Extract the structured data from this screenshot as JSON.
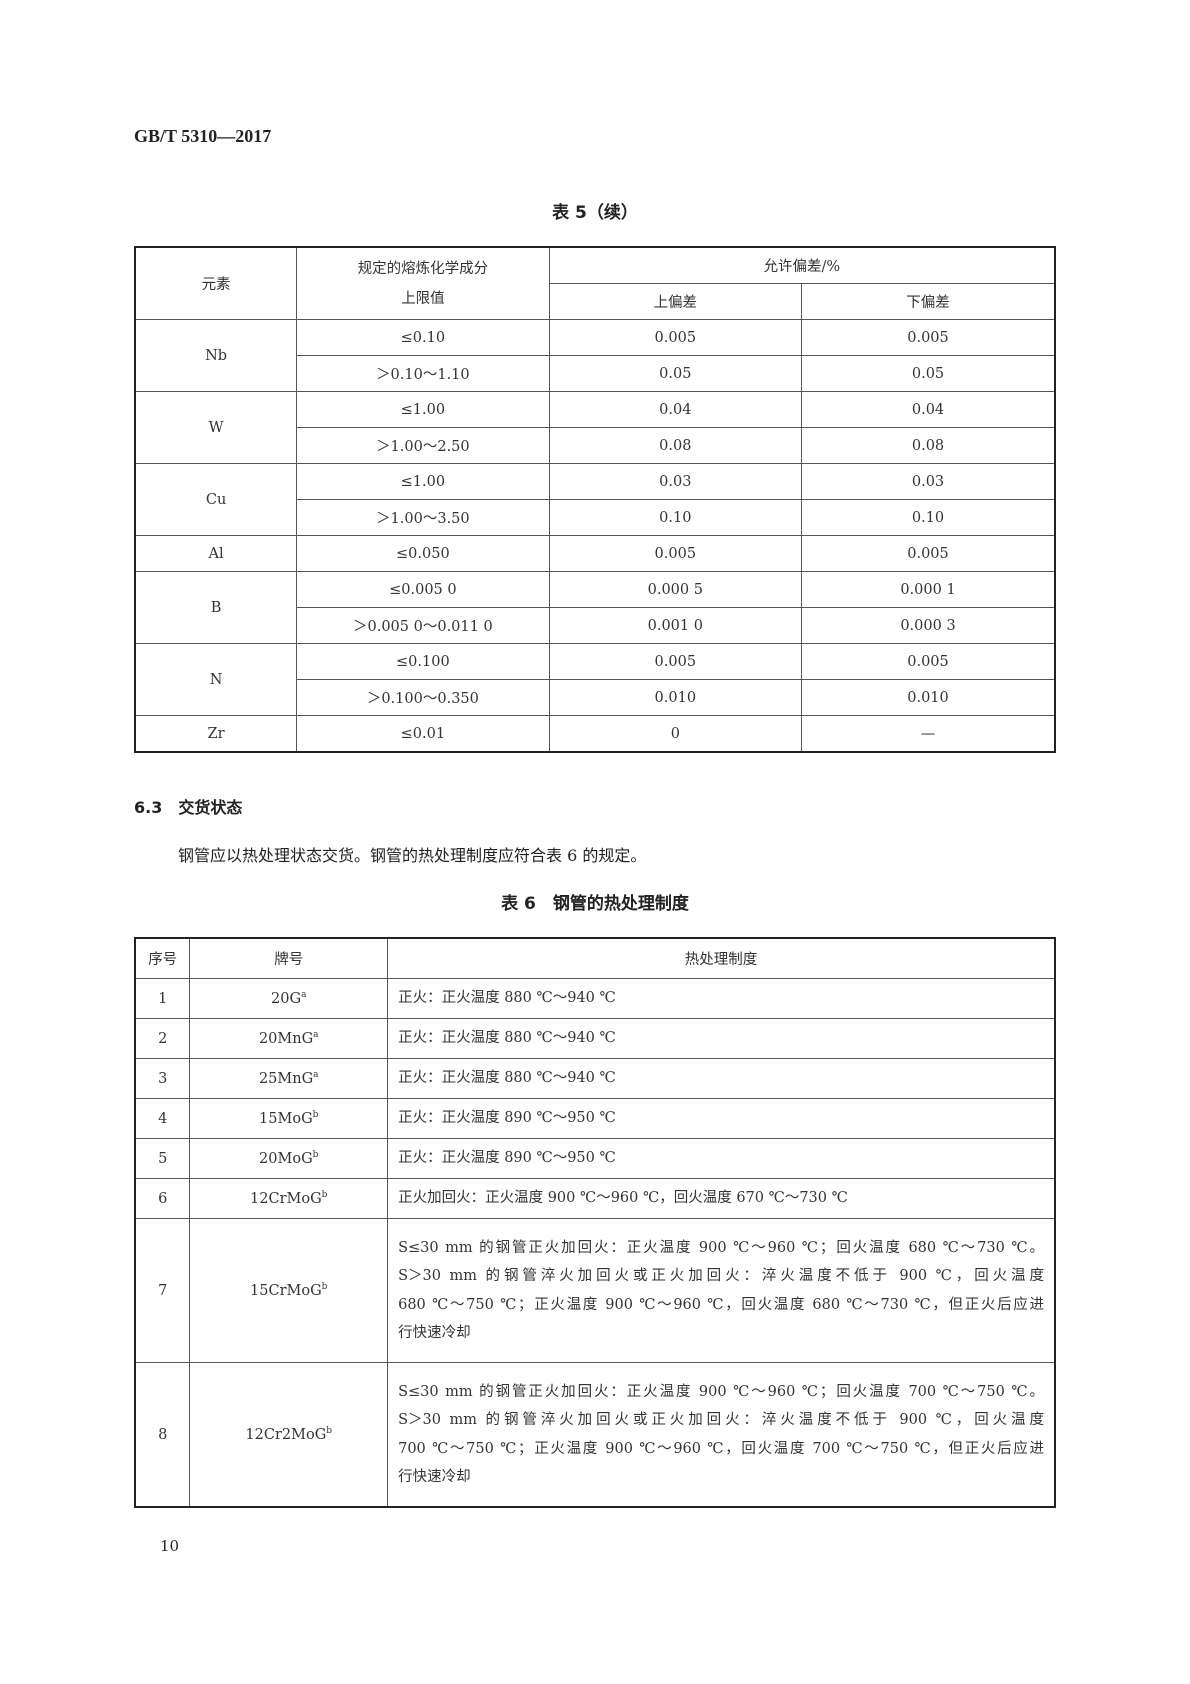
{
  "header": "GB/T 5310—2017",
  "table5": {
    "title": "表 5（续）",
    "headers": {
      "element": "元素",
      "limit_line1": "规定的熔炼化学成分",
      "limit_line2": "上限值",
      "tolerance": "允许偏差/%",
      "upper": "上偏差",
      "lower": "下偏差"
    },
    "groups": [
      {
        "element": "Nb",
        "rows": [
          [
            "≤0.10",
            "0.005",
            "0.005"
          ],
          [
            "＞0.10～1.10",
            "0.05",
            "0.05"
          ]
        ]
      },
      {
        "element": "W",
        "rows": [
          [
            "≤1.00",
            "0.04",
            "0.04"
          ],
          [
            "＞1.00～2.50",
            "0.08",
            "0.08"
          ]
        ]
      },
      {
        "element": "Cu",
        "rows": [
          [
            "≤1.00",
            "0.03",
            "0.03"
          ],
          [
            "＞1.00～3.50",
            "0.10",
            "0.10"
          ]
        ]
      },
      {
        "element": "Al",
        "rows": [
          [
            "≤0.050",
            "0.005",
            "0.005"
          ]
        ]
      },
      {
        "element": "B",
        "rows": [
          [
            "≤0.005 0",
            "0.000 5",
            "0.000 1"
          ],
          [
            "＞0.005 0～0.011 0",
            "0.001 0",
            "0.000 3"
          ]
        ]
      },
      {
        "element": "N",
        "rows": [
          [
            "≤0.100",
            "0.005",
            "0.005"
          ],
          [
            "＞0.100～0.350",
            "0.010",
            "0.010"
          ]
        ]
      },
      {
        "element": "Zr",
        "rows": [
          [
            "≤0.01",
            "0",
            "—"
          ]
        ]
      }
    ]
  },
  "section": {
    "number": "6.3",
    "title": "交货状态",
    "paragraph": "钢管应以热处理状态交货。钢管的热处理制度应符合表 6 的规定。"
  },
  "table6": {
    "title": "表 6　钢管的热处理制度",
    "headers": [
      "序号",
      "牌号",
      "热处理制度"
    ],
    "rows": [
      {
        "no": "1",
        "grade": "20G",
        "sup": "a",
        "lines": [
          "正火：正火温度 880 ℃～940 ℃"
        ]
      },
      {
        "no": "2",
        "grade": "20MnG",
        "sup": "a",
        "lines": [
          "正火：正火温度 880 ℃～940 ℃"
        ]
      },
      {
        "no": "3",
        "grade": "25MnG",
        "sup": "a",
        "lines": [
          "正火：正火温度 880 ℃～940 ℃"
        ]
      },
      {
        "no": "4",
        "grade": "15MoG",
        "sup": "b",
        "lines": [
          "正火：正火温度 890 ℃～950 ℃"
        ]
      },
      {
        "no": "5",
        "grade": "20MoG",
        "sup": "b",
        "lines": [
          "正火：正火温度 890 ℃～950 ℃"
        ]
      },
      {
        "no": "6",
        "grade": "12CrMoG",
        "sup": "b",
        "lines": [
          "正火加回火：正火温度 900 ℃～960 ℃，回火温度 670 ℃～730 ℃"
        ]
      },
      {
        "no": "7",
        "grade": "15CrMoG",
        "sup": "b",
        "lines": [
          "S≤30 mm 的钢管正火加回火：正火温度 900 ℃～960 ℃；回火温度 680 ℃～730 ℃。",
          "S＞30 mm 的钢管淬火加回火或正火加回火：淬火温度不低于 900 ℃，回火温度",
          "680 ℃～750 ℃；正火温度 900 ℃～960 ℃，回火温度 680 ℃～730 ℃，但正火后应进",
          "行快速冷却"
        ]
      },
      {
        "no": "8",
        "grade": "12Cr2MoG",
        "sup": "b",
        "lines": [
          "S≤30 mm 的钢管正火加回火：正火温度 900 ℃～960 ℃；回火温度 700 ℃～750 ℃。",
          "S＞30 mm 的钢管淬火加回火或正火加回火：淬火温度不低于 900 ℃，回火温度",
          "700 ℃～750 ℃；正火温度 900 ℃～960 ℃，回火温度 700 ℃～750 ℃，但正火后应进",
          "行快速冷却"
        ]
      }
    ]
  },
  "page_number": "10"
}
